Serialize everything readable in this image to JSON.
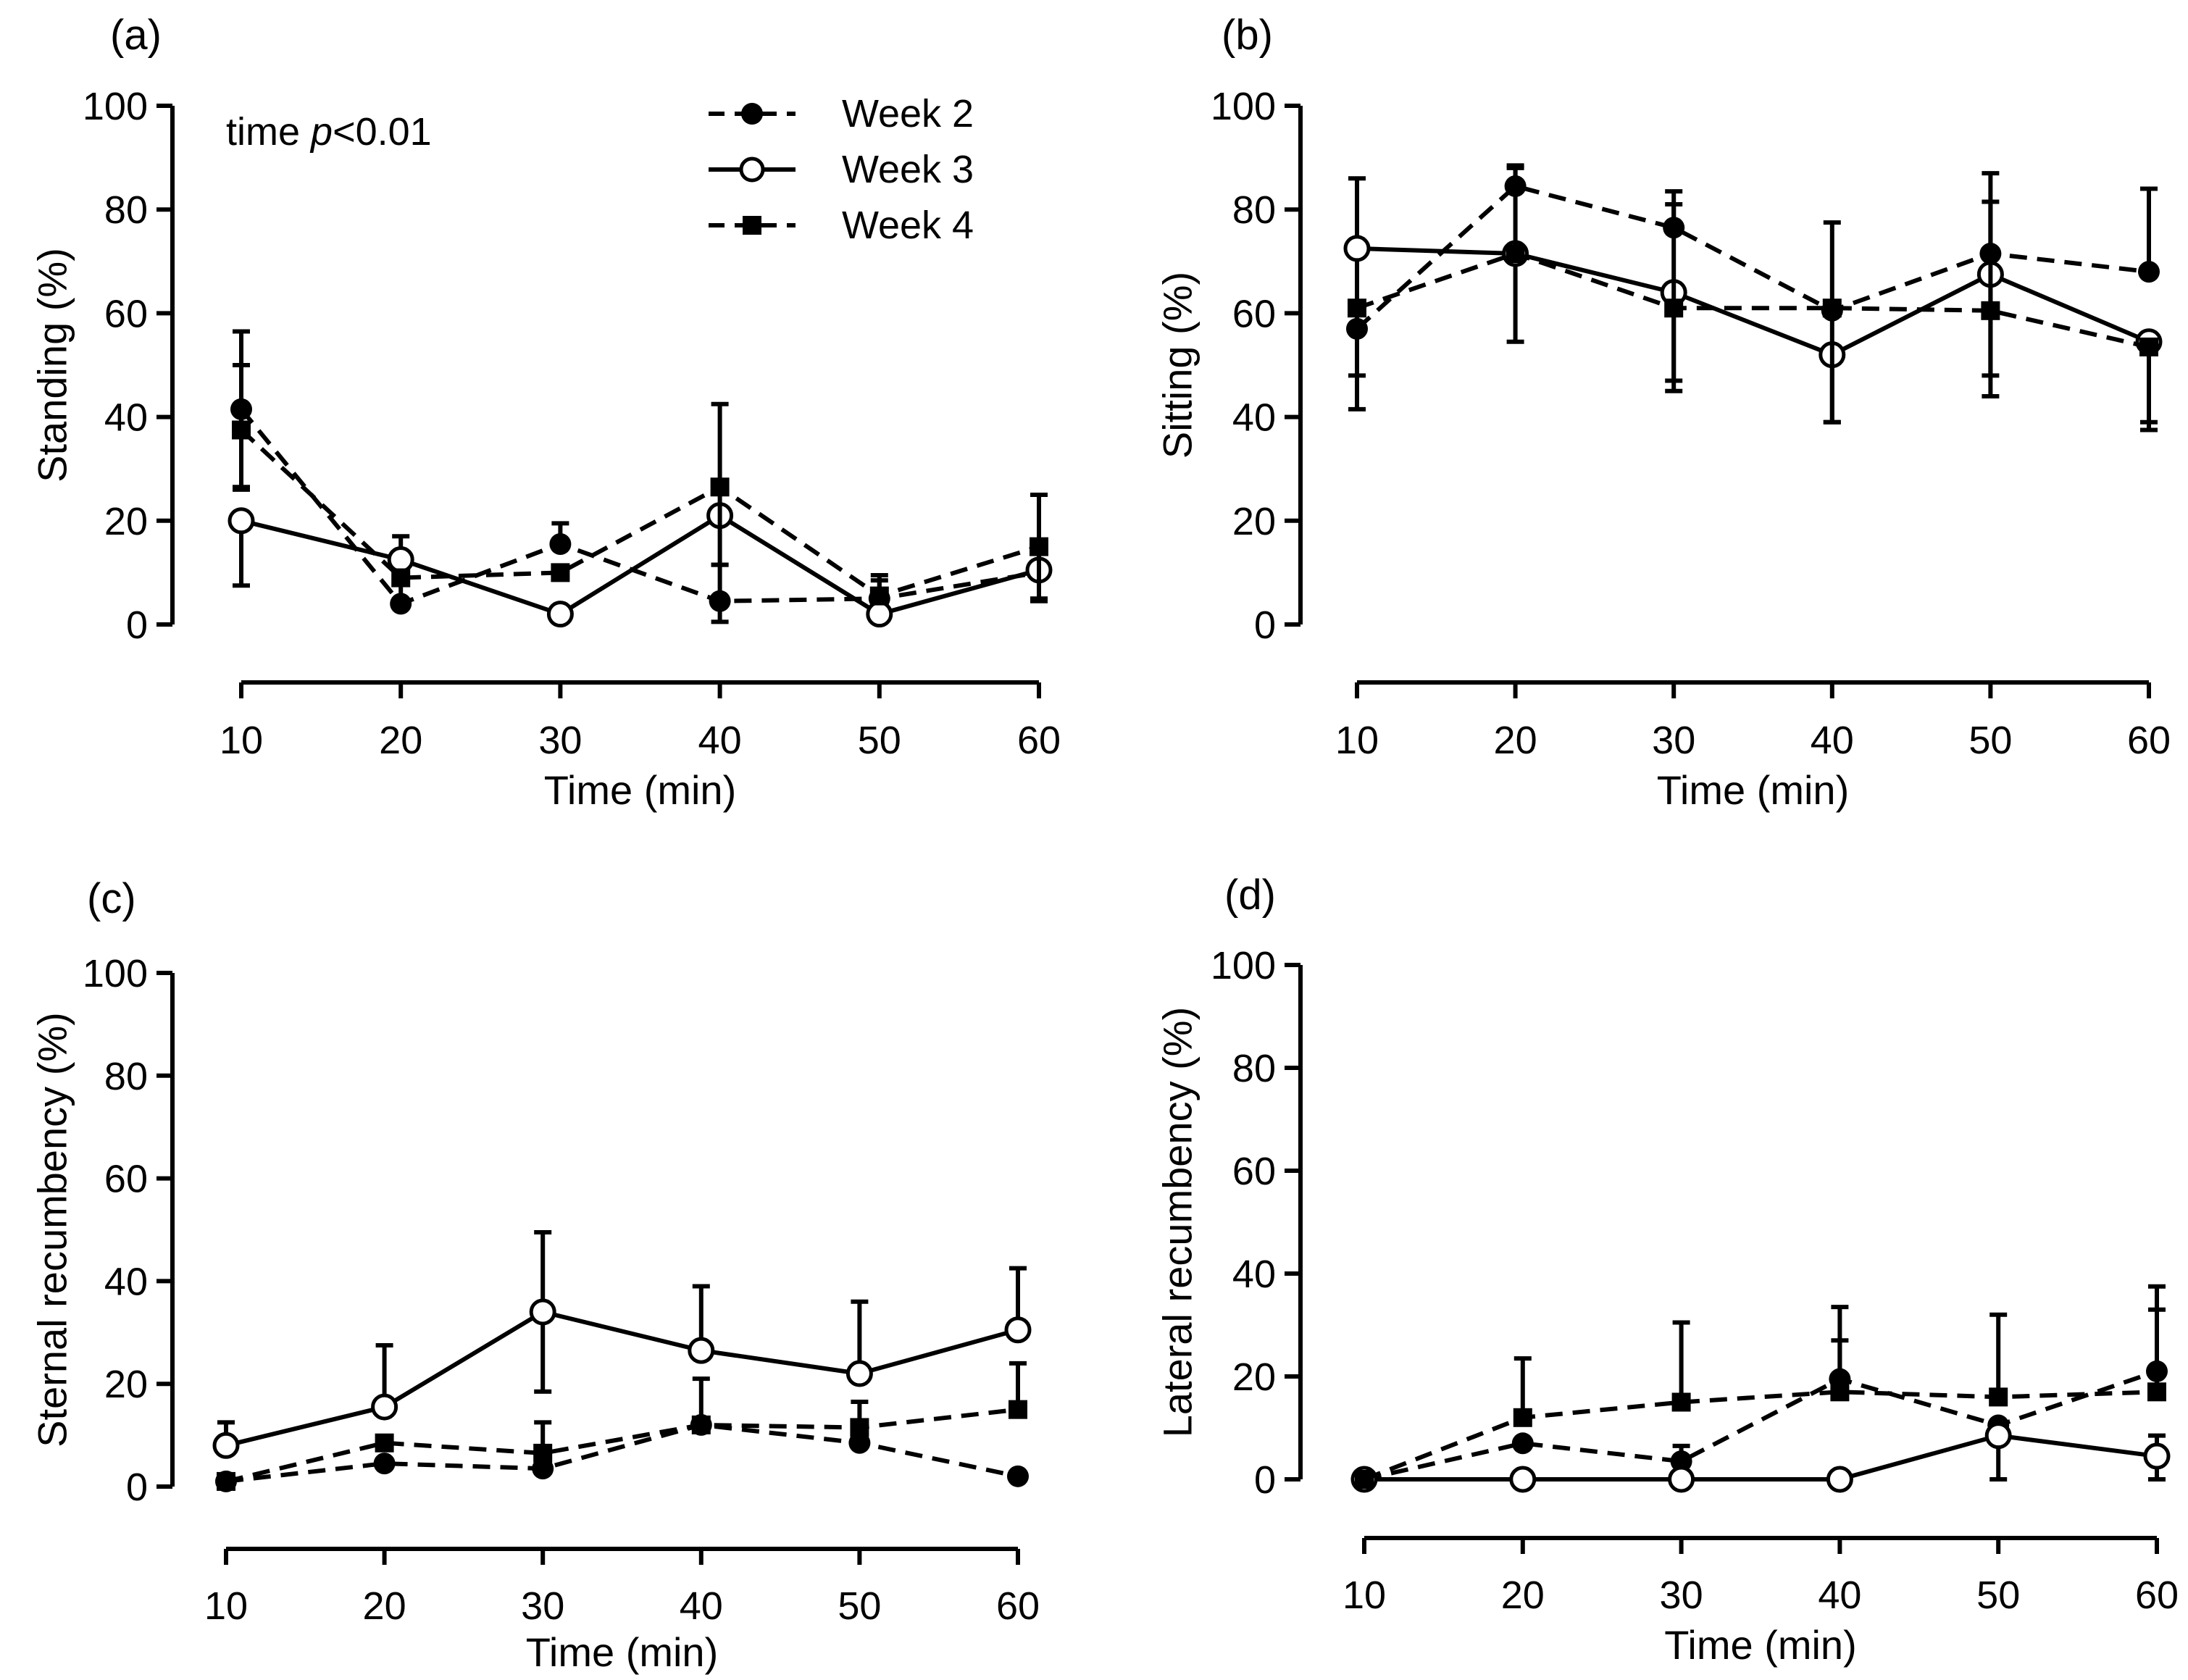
{
  "chart_data": [
    {
      "panel_label": "(a)",
      "type": "line",
      "xlabel": "Time (min)",
      "ylabel": "Standing (%)",
      "x": [
        10,
        20,
        30,
        40,
        50,
        60
      ],
      "x_ticks": [
        "10",
        "20",
        "30",
        "40",
        "50",
        "60"
      ],
      "y_ticks": [
        "0",
        "20",
        "40",
        "60",
        "80",
        "100"
      ],
      "ylim": [
        0,
        100
      ],
      "annotation": {
        "prefix": "time ",
        "italic": "p",
        "suffix": "<0.01"
      },
      "legend": {
        "placement": "top-right",
        "entries": [
          "Week 2",
          "Week 3",
          "Week 4"
        ]
      },
      "series": [
        {
          "name": "Week 2",
          "marker": "filled-circle",
          "line": "dashed",
          "values": [
            41.5,
            4,
            15.5,
            4.5,
            5,
            10
          ],
          "err_up": [
            15,
            9,
            4,
            7,
            3.5,
            1.5
          ],
          "err_down": [
            15,
            0,
            0,
            4,
            0,
            5
          ]
        },
        {
          "name": "Week 3",
          "marker": "open-circle",
          "line": "solid",
          "values": [
            20,
            12.5,
            2,
            21,
            2,
            10.5
          ],
          "err_up": [
            0,
            4.5,
            0,
            0,
            0,
            0
          ],
          "err_down": [
            12.5,
            0,
            0,
            0,
            0,
            0
          ]
        },
        {
          "name": "Week 4",
          "marker": "filled-square",
          "line": "dashed",
          "values": [
            37.5,
            9,
            10,
            26.5,
            5.5,
            15
          ],
          "err_up": [
            12.5,
            0,
            0,
            16,
            4,
            10
          ],
          "err_down": [
            11.5,
            0,
            0,
            15,
            0,
            10.5
          ]
        }
      ]
    },
    {
      "panel_label": "(b)",
      "type": "line",
      "xlabel": "Time (min)",
      "ylabel": "Sitting (%)",
      "x": [
        10,
        20,
        30,
        40,
        50,
        60
      ],
      "x_ticks": [
        "10",
        "20",
        "30",
        "40",
        "50",
        "60"
      ],
      "y_ticks": [
        "0",
        "20",
        "40",
        "60",
        "80",
        "100"
      ],
      "ylim": [
        0,
        100
      ],
      "series": [
        {
          "name": "Week 2",
          "marker": "filled-circle",
          "line": "dashed",
          "values": [
            57,
            84.5,
            76.5,
            60.5,
            71.5,
            68
          ],
          "err_up": [
            0,
            4,
            7,
            17,
            15.5,
            16
          ],
          "err_down": [
            0,
            0,
            0,
            0,
            0,
            0
          ]
        },
        {
          "name": "Week 3",
          "marker": "open-circle",
          "line": "solid",
          "values": [
            72.5,
            71.5,
            64,
            52,
            67.5,
            54.5
          ],
          "err_up": [
            13.5,
            0,
            0,
            0,
            0,
            0
          ],
          "err_down": [
            31,
            17,
            17,
            13,
            19.5,
            17
          ]
        },
        {
          "name": "Week 4",
          "marker": "filled-square",
          "line": "dashed",
          "values": [
            61,
            71.5,
            61,
            61,
            60.5,
            53.5
          ],
          "err_up": [
            0,
            16.5,
            20,
            0,
            21,
            0
          ],
          "err_down": [
            13,
            0,
            16,
            22,
            16.5,
            14.5
          ]
        }
      ]
    },
    {
      "panel_label": "(c)",
      "type": "line",
      "xlabel": "Time (min)",
      "ylabel": "Sternal recumbency (%)",
      "x": [
        10,
        20,
        30,
        40,
        50,
        60
      ],
      "x_ticks": [
        "10",
        "20",
        "30",
        "40",
        "50",
        "60"
      ],
      "y_ticks": [
        "0",
        "20",
        "40",
        "60",
        "80",
        "100"
      ],
      "ylim": [
        0,
        100
      ],
      "series": [
        {
          "name": "Week 2",
          "marker": "filled-circle",
          "line": "dashed",
          "values": [
            1,
            4.5,
            3.5,
            12,
            8.5,
            2
          ],
          "err_up": [
            0,
            0,
            0,
            0,
            0,
            0
          ],
          "err_down": [
            0,
            0,
            0,
            0,
            0,
            0
          ]
        },
        {
          "name": "Week 3",
          "marker": "open-circle",
          "line": "solid",
          "values": [
            8,
            15.5,
            34,
            26.5,
            22,
            30.5
          ],
          "err_up": [
            4.5,
            12,
            15.5,
            12.5,
            14,
            12
          ],
          "err_down": [
            0,
            0,
            15.5,
            0,
            0,
            0
          ]
        },
        {
          "name": "Week 4",
          "marker": "filled-square",
          "line": "dashed",
          "values": [
            1,
            8.5,
            6.5,
            12,
            11.5,
            15
          ],
          "err_up": [
            0,
            0,
            6,
            9,
            5,
            9
          ],
          "err_down": [
            0,
            0,
            0,
            0,
            0,
            0
          ]
        }
      ]
    },
    {
      "panel_label": "(d)",
      "type": "line",
      "xlabel": "Time (min)",
      "ylabel": "Lateral recumbency (%)",
      "x": [
        10,
        20,
        30,
        40,
        50,
        60
      ],
      "x_ticks": [
        "10",
        "20",
        "30",
        "40",
        "50",
        "60"
      ],
      "y_ticks": [
        "0",
        "20",
        "40",
        "60",
        "80",
        "100"
      ],
      "ylim": [
        0,
        100
      ],
      "series": [
        {
          "name": "Week 2",
          "marker": "filled-circle",
          "line": "dashed",
          "values": [
            0,
            7,
            3.5,
            19.5,
            10.5,
            21
          ],
          "err_up": [
            0,
            0,
            3,
            14,
            0,
            16.5
          ],
          "err_down": [
            0,
            0,
            0,
            0,
            0,
            0
          ]
        },
        {
          "name": "Week 3",
          "marker": "open-circle",
          "line": "solid",
          "values": [
            0,
            0,
            0,
            0,
            8.5,
            4.5
          ],
          "err_up": [
            0,
            0,
            0,
            0,
            0,
            4
          ],
          "err_down": [
            0,
            0,
            0,
            0,
            8.5,
            4.5
          ]
        },
        {
          "name": "Week 4",
          "marker": "filled-square",
          "line": "dashed",
          "values": [
            0,
            12,
            15,
            17,
            16,
            17
          ],
          "err_up": [
            0,
            11.5,
            15.5,
            10,
            16,
            16
          ],
          "err_down": [
            0,
            0,
            0,
            0,
            0,
            0
          ]
        }
      ]
    }
  ]
}
